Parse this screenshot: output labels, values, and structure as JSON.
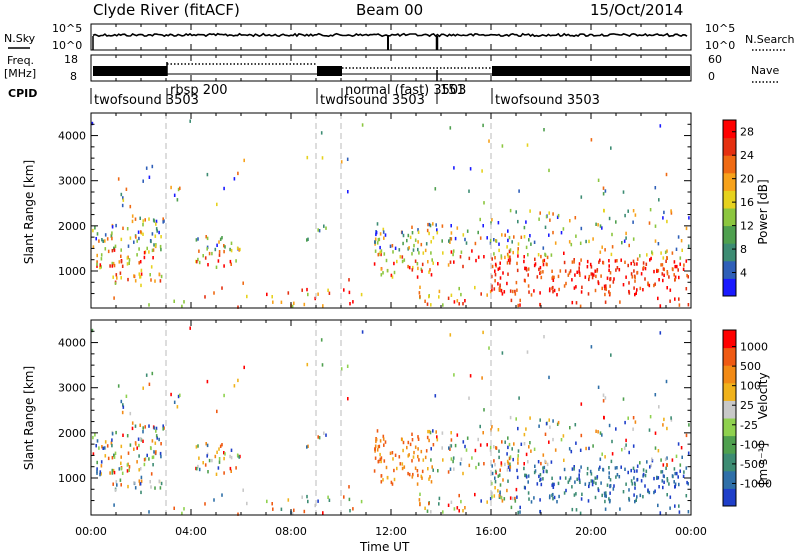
{
  "header": {
    "station": "Clyde River (fitACF)",
    "beam": "Beam 00",
    "date": "15/Oct/2014"
  },
  "strip_labels": {
    "nsky": "N.Sky",
    "freq": "Freq.",
    "freq_unit": "[MHz]",
    "cpid": "CPID",
    "nsearch": "N.Search",
    "nave": "Nave"
  },
  "strip_ticks": {
    "nsky_top": "10^5",
    "nsky_bottom": "10^0",
    "freq_top": "18",
    "freq_bottom": "8",
    "nave_top": "60",
    "nave_bottom": "0"
  },
  "cpid_segments": [
    {
      "label": "twofsound 3503",
      "start_h": 0,
      "end_h": 3.0
    },
    {
      "label": "rbsp 200",
      "start_h": 3.0,
      "end_h": 9.0
    },
    {
      "label": "twofsound 3503",
      "start_h": 9.0,
      "end_h": 10.0
    },
    {
      "label": "normal (fast) 3503",
      "start_h": 10.0,
      "end_h": 16.0
    },
    {
      "label": "151",
      "start_h": 13.7,
      "end_h": 14.0
    },
    {
      "label": "twofsound 3503",
      "start_h": 16.0,
      "end_h": 24.0
    }
  ],
  "chart_data": [
    {
      "type": "heatmap",
      "name": "power",
      "ylabel": "Slant Range [km]",
      "x_ticks": [
        "00:00",
        "04:00",
        "08:00",
        "12:00",
        "16:00",
        "20:00",
        "00:00"
      ],
      "y_ticks": [
        1000,
        2000,
        3000,
        4000
      ],
      "xlim_hours": [
        0,
        24
      ],
      "ylim_km": [
        180,
        4500
      ],
      "colorbar": {
        "label": "Power [dB]",
        "ticks": [
          4,
          8,
          12,
          16,
          20,
          24,
          28
        ],
        "range": [
          0,
          30
        ],
        "colors": [
          "#1a1aff",
          "#2f5fb8",
          "#3d8c73",
          "#4fa04f",
          "#8cc63f",
          "#e6d21e",
          "#f7a21b",
          "#ef6a13",
          "#e53010",
          "#ff0000"
        ]
      }
    },
    {
      "type": "heatmap",
      "name": "velocity",
      "xlabel": "Time UT",
      "ylabel": "Slant Range [km]",
      "x_ticks": [
        "00:00",
        "04:00",
        "08:00",
        "12:00",
        "16:00",
        "20:00",
        "00:00"
      ],
      "y_ticks": [
        1000,
        2000,
        3000,
        4000
      ],
      "xlim_hours": [
        0,
        24
      ],
      "ylim_km": [
        180,
        4500
      ],
      "colorbar": {
        "label": "Velocity",
        "label_unit": "[m s⁻¹]",
        "ticks": [
          "1000",
          "500",
          "100",
          "25",
          "-25",
          "-100",
          "-500",
          "-1000"
        ],
        "colors": [
          "#1f3fc9",
          "#2f6fa8",
          "#3d8c73",
          "#4fa04f",
          "#8fd14f",
          "#c8c8c8",
          "#f0b21b",
          "#f28a15",
          "#ef5a13",
          "#ff0000"
        ]
      }
    }
  ],
  "colors": {
    "axis": "#000000",
    "dashed_line": "#bbbbbb",
    "strip_fill": "#000000"
  }
}
